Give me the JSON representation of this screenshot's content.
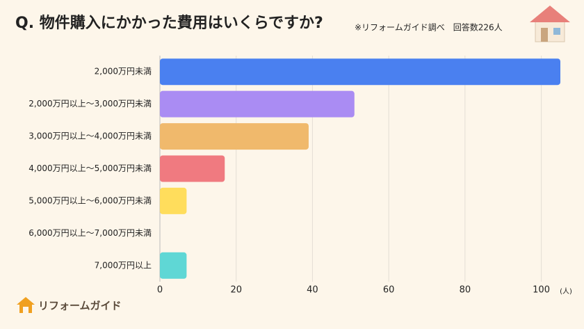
{
  "chart_data": {
    "type": "bar",
    "orientation": "horizontal",
    "title": "Q.  物件購入にかかった費用はいくらですか?",
    "subtitle": "※リフォームガイド調べ　回答数226人",
    "categories": [
      "2,000万円未満",
      "2,000万円以上〜3,000万円未満",
      "3,000万円以上〜4,000万円未満",
      "4,000万円以上〜5,000万円未満",
      "5,000万円以上〜6,000万円未満",
      "6,000万円以上〜7,000万円未満",
      "7,000万円以上"
    ],
    "values": [
      105,
      51,
      39,
      17,
      7,
      0,
      7
    ],
    "colors": [
      "#4a80f0",
      "#aa8cf3",
      "#f0b96c",
      "#f07a80",
      "#ffdd5c",
      "#9ad3e0",
      "#5fd7d5"
    ],
    "xlabel": "(人)",
    "xlim": [
      0,
      105
    ],
    "xticks": [
      0,
      20,
      40,
      60,
      80,
      100
    ],
    "grid": true
  },
  "logo": "リフォームガイド"
}
